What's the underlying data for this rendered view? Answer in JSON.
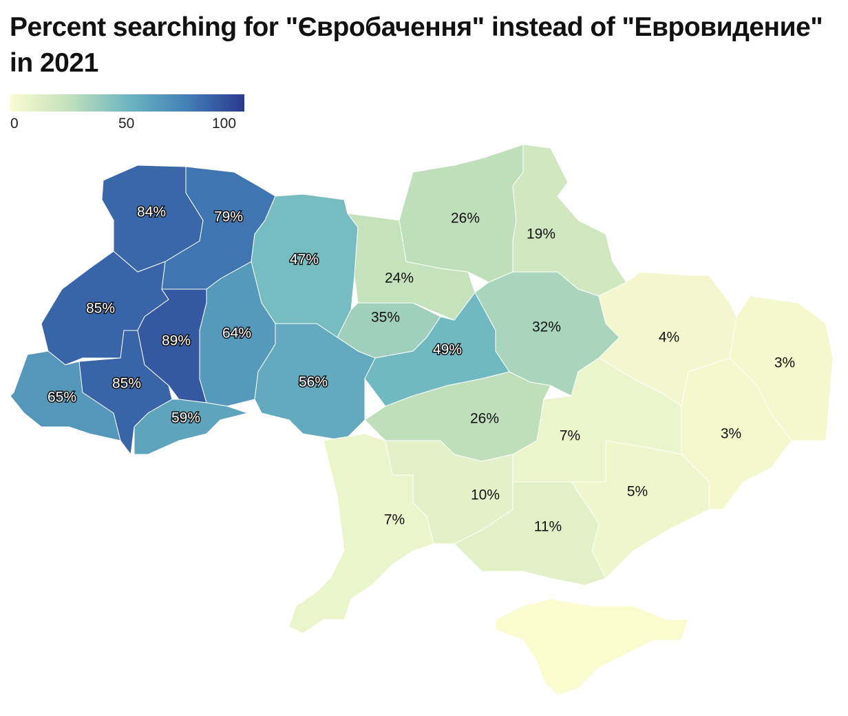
{
  "title": "Percent searching for \"Євробачення\" instead of \"Евровидение\" in 2021",
  "legend": {
    "ticks": [
      "0",
      "50",
      "100"
    ],
    "range": [
      0,
      100
    ],
    "colors": [
      "#fbfbd0",
      "#c2e1bb",
      "#6db7c1",
      "#4381b6",
      "#2a3990"
    ]
  },
  "regions": [
    {
      "id": "volyn",
      "value": 84,
      "label": "84%"
    },
    {
      "id": "rivne",
      "value": 79,
      "label": "79%"
    },
    {
      "id": "zhytomyr",
      "value": 47,
      "label": "47%"
    },
    {
      "id": "chernihiv",
      "value": 26,
      "label": "26%"
    },
    {
      "id": "sumy",
      "value": 19,
      "label": "19%"
    },
    {
      "id": "kyiv-north",
      "value": 24,
      "label": "24%"
    },
    {
      "id": "kyiv-south",
      "value": 35,
      "label": "35%"
    },
    {
      "id": "lviv",
      "value": 85,
      "label": "85%"
    },
    {
      "id": "ternopil",
      "value": 89,
      "label": "89%"
    },
    {
      "id": "khmelnytskyi",
      "value": 64,
      "label": "64%"
    },
    {
      "id": "poltava",
      "value": 32,
      "label": "32%"
    },
    {
      "id": "kharkiv",
      "value": 4,
      "label": "4%"
    },
    {
      "id": "luhansk",
      "value": 3,
      "label": "3%"
    },
    {
      "id": "cherkasy",
      "value": 49,
      "label": "49%"
    },
    {
      "id": "vinnytsia",
      "value": 56,
      "label": "56%"
    },
    {
      "id": "zakarpattia",
      "value": 65,
      "label": "65%"
    },
    {
      "id": "ivano-frankivsk",
      "value": 85,
      "label": "85%"
    },
    {
      "id": "chernivtsi",
      "value": 59,
      "label": "59%"
    },
    {
      "id": "kirovohrad",
      "value": 26,
      "label": "26%"
    },
    {
      "id": "dnipro",
      "value": 7,
      "label": "7%"
    },
    {
      "id": "donetsk",
      "value": 3,
      "label": "3%"
    },
    {
      "id": "mykolaiv",
      "value": 10,
      "label": "10%"
    },
    {
      "id": "odesa",
      "value": 7,
      "label": "7%"
    },
    {
      "id": "zaporizhzhia",
      "value": 5,
      "label": "5%"
    },
    {
      "id": "kherson",
      "value": 11,
      "label": "11%"
    },
    {
      "id": "crimea",
      "value": 0,
      "label": ""
    }
  ]
}
